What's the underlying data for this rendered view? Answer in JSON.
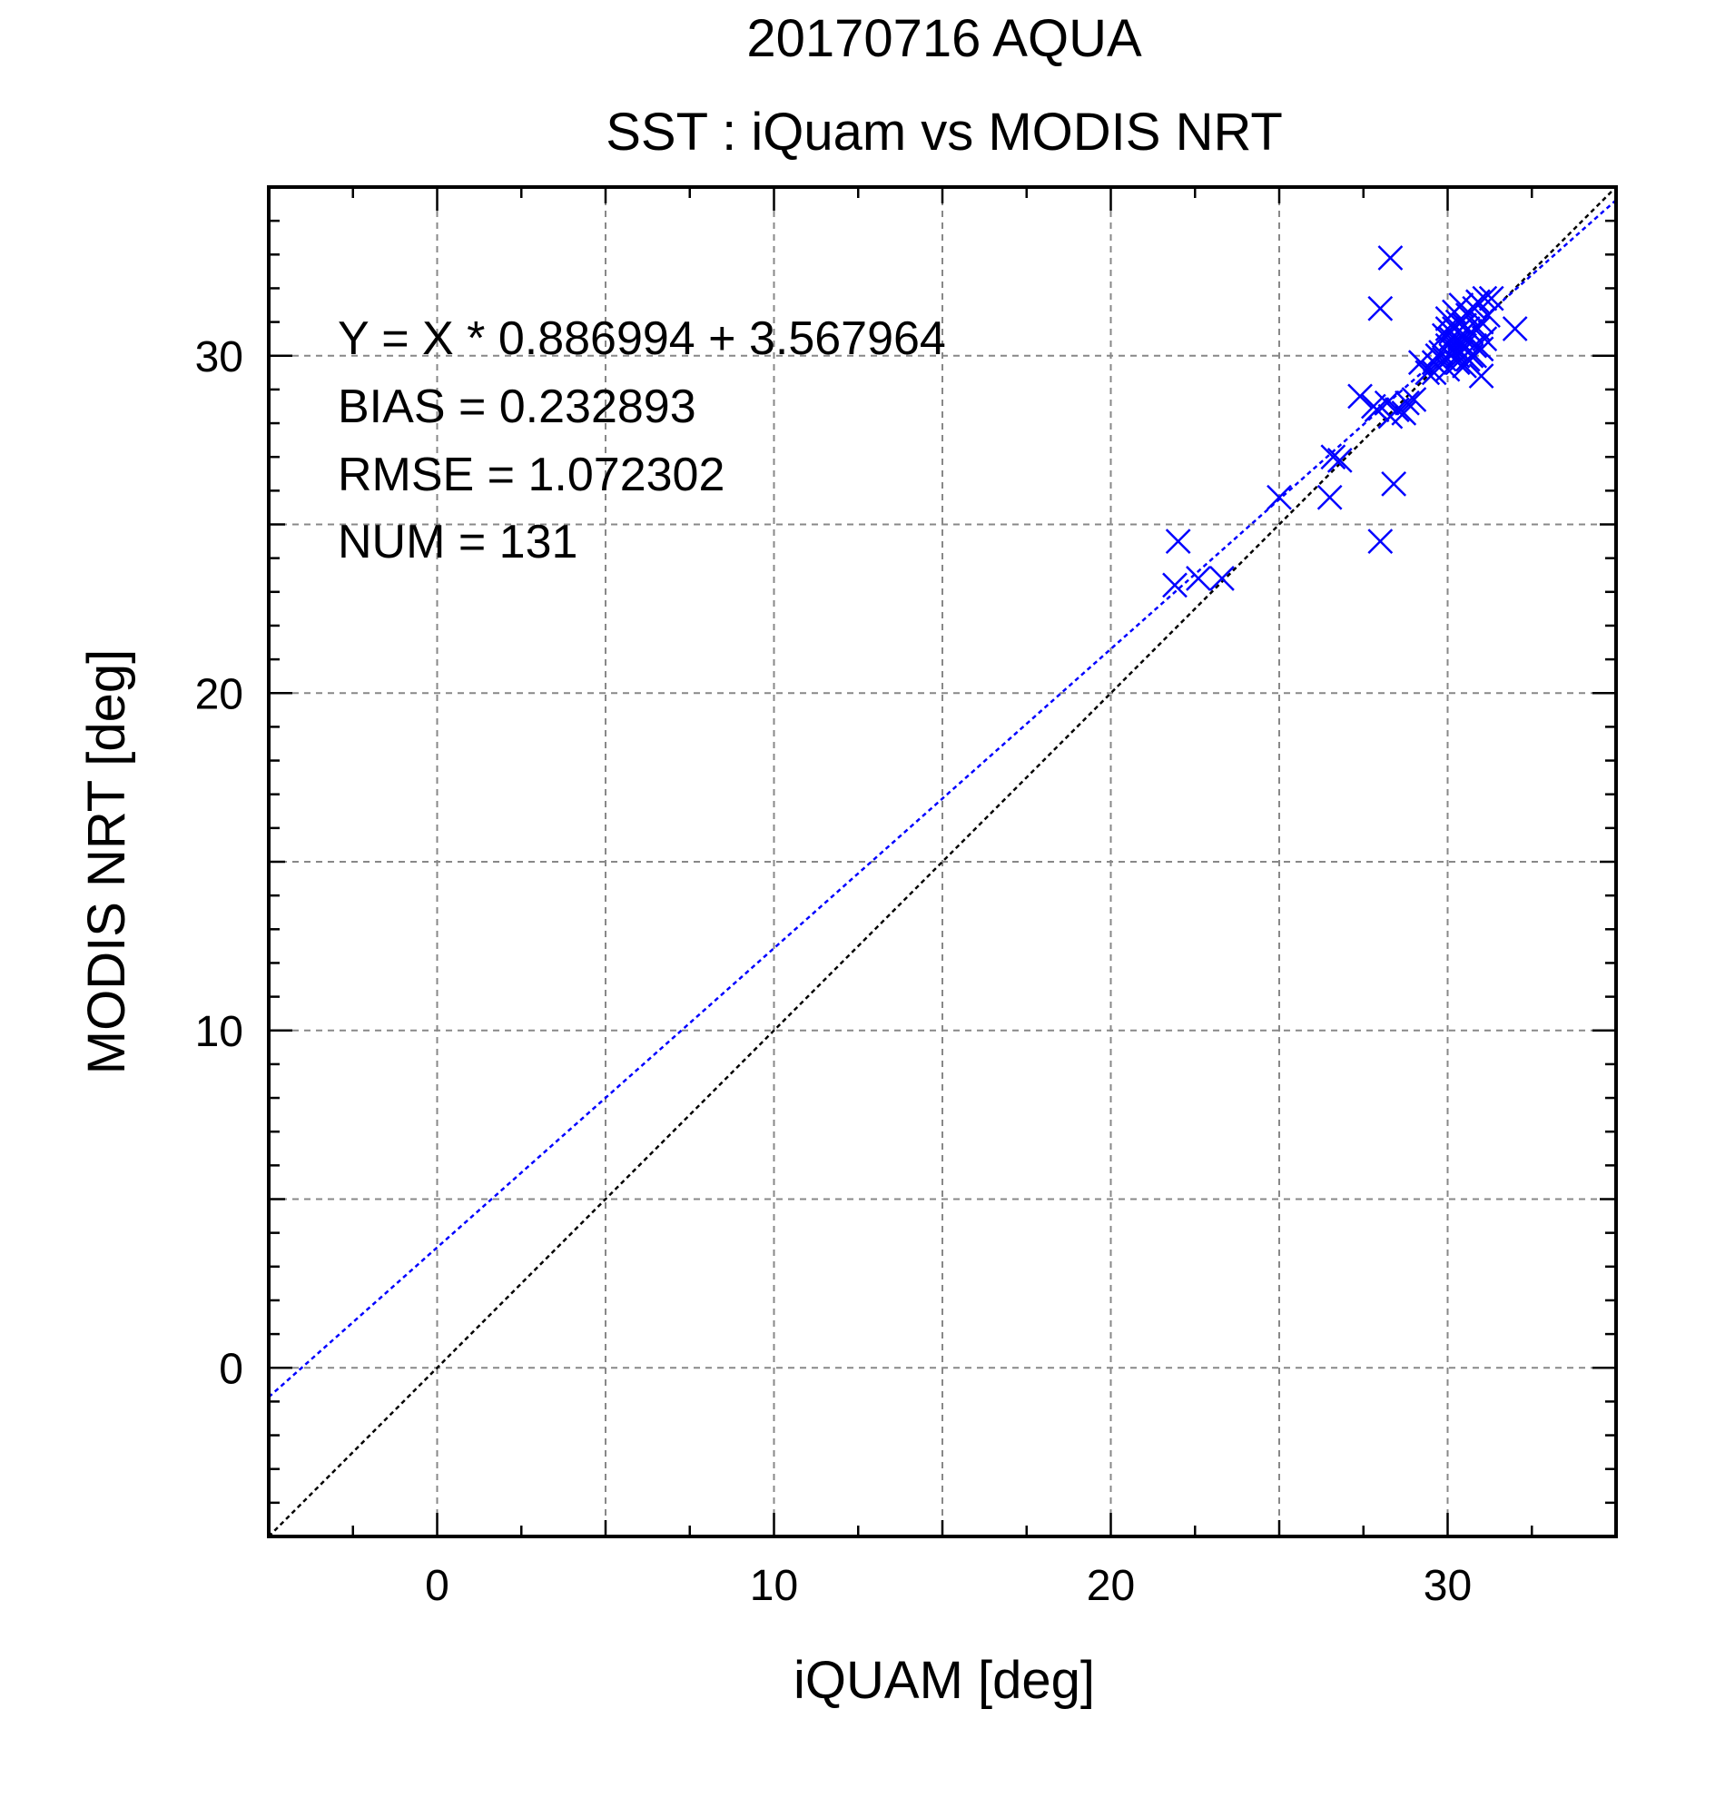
{
  "chart_data": {
    "type": "scatter",
    "title": "20170716 AQUA",
    "subtitle": "SST : iQuam vs MODIS NRT",
    "xlabel": "iQUAM [deg]",
    "ylabel": "MODIS NRT [deg]",
    "xlim": [
      -5,
      35
    ],
    "ylim": [
      -5,
      35
    ],
    "xticks": [
      0,
      10,
      20,
      30
    ],
    "yticks": [
      0,
      10,
      20,
      30
    ],
    "minor_tick_step": 1,
    "grid": true,
    "grid_step": 5,
    "marker": "x",
    "colors": {
      "points": "#0000ff",
      "fit_line": "#0000ff",
      "one_to_one_line": "#000000",
      "grid": "#888888"
    },
    "stats": {
      "equation": "Y = X * 0.886994 + 3.567964",
      "bias": "BIAS = 0.232893",
      "rmse": "RMSE = 1.072302",
      "num": "NUM = 131"
    },
    "fit_line": {
      "slope": 0.886994,
      "intercept": 3.567964
    },
    "one_to_one_line": {
      "slope": 1,
      "intercept": 0
    },
    "points": [
      {
        "x": 21.9,
        "y": 23.2
      },
      {
        "x": 22.0,
        "y": 24.5
      },
      {
        "x": 22.6,
        "y": 23.4
      },
      {
        "x": 23.3,
        "y": 23.4
      },
      {
        "x": 25.0,
        "y": 25.8
      },
      {
        "x": 26.5,
        "y": 25.8
      },
      {
        "x": 26.6,
        "y": 27.0
      },
      {
        "x": 26.8,
        "y": 26.9
      },
      {
        "x": 27.4,
        "y": 28.8
      },
      {
        "x": 27.8,
        "y": 28.5
      },
      {
        "x": 27.9,
        "y": 28.4
      },
      {
        "x": 28.0,
        "y": 24.5
      },
      {
        "x": 28.0,
        "y": 31.4
      },
      {
        "x": 28.2,
        "y": 28.6
      },
      {
        "x": 28.3,
        "y": 28.2
      },
      {
        "x": 28.4,
        "y": 26.2
      },
      {
        "x": 28.3,
        "y": 32.9
      },
      {
        "x": 28.5,
        "y": 28.4
      },
      {
        "x": 28.7,
        "y": 28.3
      },
      {
        "x": 28.8,
        "y": 28.6
      },
      {
        "x": 29.0,
        "y": 28.7
      },
      {
        "x": 29.2,
        "y": 29.8
      },
      {
        "x": 29.4,
        "y": 29.5
      },
      {
        "x": 29.6,
        "y": 29.8
      },
      {
        "x": 29.7,
        "y": 30.0
      },
      {
        "x": 29.8,
        "y": 30.1
      },
      {
        "x": 29.9,
        "y": 29.9
      },
      {
        "x": 30.0,
        "y": 30.3
      },
      {
        "x": 30.0,
        "y": 29.6
      },
      {
        "x": 30.0,
        "y": 31.1
      },
      {
        "x": 30.1,
        "y": 30.5
      },
      {
        "x": 30.1,
        "y": 30.0
      },
      {
        "x": 30.2,
        "y": 30.8
      },
      {
        "x": 30.2,
        "y": 30.2
      },
      {
        "x": 30.3,
        "y": 30.4
      },
      {
        "x": 30.3,
        "y": 31.0
      },
      {
        "x": 30.3,
        "y": 29.8
      },
      {
        "x": 30.4,
        "y": 30.6
      },
      {
        "x": 30.4,
        "y": 30.1
      },
      {
        "x": 30.5,
        "y": 30.9
      },
      {
        "x": 30.5,
        "y": 30.3
      },
      {
        "x": 30.5,
        "y": 29.7
      },
      {
        "x": 30.6,
        "y": 30.5
      },
      {
        "x": 30.6,
        "y": 31.2
      },
      {
        "x": 30.7,
        "y": 30.0
      },
      {
        "x": 30.7,
        "y": 30.7
      },
      {
        "x": 30.8,
        "y": 31.4
      },
      {
        "x": 30.8,
        "y": 30.3
      },
      {
        "x": 30.9,
        "y": 31.6
      },
      {
        "x": 30.9,
        "y": 30.8
      },
      {
        "x": 31.0,
        "y": 31.0
      },
      {
        "x": 31.0,
        "y": 29.4
      },
      {
        "x": 31.1,
        "y": 31.7
      },
      {
        "x": 31.1,
        "y": 30.5
      },
      {
        "x": 31.2,
        "y": 31.2
      },
      {
        "x": 31.3,
        "y": 31.7
      },
      {
        "x": 29.9,
        "y": 30.6
      },
      {
        "x": 30.0,
        "y": 30.8
      },
      {
        "x": 30.2,
        "y": 31.3
      },
      {
        "x": 30.4,
        "y": 31.5
      },
      {
        "x": 30.6,
        "y": 29.9
      },
      {
        "x": 30.8,
        "y": 30.0
      },
      {
        "x": 31.0,
        "y": 30.2
      },
      {
        "x": 30.3,
        "y": 30.0
      },
      {
        "x": 30.1,
        "y": 30.7
      },
      {
        "x": 30.4,
        "y": 30.4
      },
      {
        "x": 30.6,
        "y": 30.8
      },
      {
        "x": 29.6,
        "y": 29.5
      },
      {
        "x": 32.0,
        "y": 30.8
      }
    ]
  }
}
